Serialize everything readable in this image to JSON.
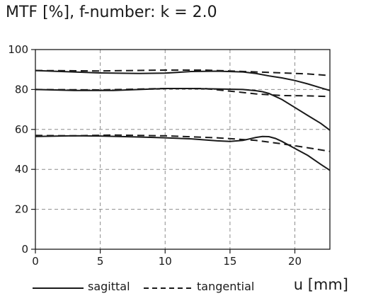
{
  "chart_data": {
    "type": "line",
    "title": "MTF [%], f-number: k = 2.0",
    "xlabel": "u [mm]",
    "ylabel": "",
    "xlim": [
      0,
      22.7
    ],
    "ylim": [
      0,
      100
    ],
    "xticks": [
      0,
      5,
      10,
      15,
      20
    ],
    "yticks": [
      0,
      20,
      40,
      60,
      80,
      100
    ],
    "grid": true,
    "legend": {
      "placement": "bottom",
      "entries": [
        {
          "label": "sagittal",
          "style": "solid"
        },
        {
          "label": "tangential",
          "style": "dashed"
        }
      ]
    },
    "series": [
      {
        "name": "sagittal",
        "style": "solid",
        "x": [
          0,
          2,
          5,
          8,
          10,
          12,
          14,
          16,
          17,
          18,
          19,
          20,
          21,
          22,
          22.7
        ],
        "y": [
          89.5,
          89,
          88.3,
          88,
          88.2,
          89,
          89.2,
          88.8,
          88,
          86.8,
          85.8,
          84.5,
          82.8,
          80.8,
          79.5
        ]
      },
      {
        "name": "tangential",
        "style": "dashed",
        "x": [
          0,
          5,
          10,
          13,
          15,
          17,
          19,
          21,
          22.7
        ],
        "y": [
          89.5,
          89.3,
          89.7,
          89.7,
          89.3,
          88.8,
          88.3,
          87.8,
          87
        ]
      },
      {
        "name": "sagittal",
        "style": "solid",
        "x": [
          0,
          3,
          6,
          10,
          12,
          14,
          16,
          17,
          17.5,
          18,
          19,
          20,
          21,
          22,
          22.7
        ],
        "y": [
          80,
          79.5,
          79.5,
          80.5,
          80.5,
          80.3,
          80,
          79.4,
          78.9,
          78,
          75,
          71,
          67,
          63,
          59.6
        ]
      },
      {
        "name": "tangential",
        "style": "dashed",
        "x": [
          0,
          5,
          10,
          13,
          15,
          17,
          19,
          21,
          22.7
        ],
        "y": [
          80,
          79.8,
          80.5,
          80.5,
          79.2,
          77.8,
          77,
          76.8,
          76.5
        ]
      },
      {
        "name": "sagittal",
        "style": "solid",
        "x": [
          0,
          3,
          5,
          8,
          10,
          12,
          14,
          15,
          16,
          17,
          17.5,
          18,
          18.5,
          19,
          20,
          21,
          22,
          22.7
        ],
        "y": [
          56.5,
          56.8,
          56.7,
          56.2,
          55.8,
          55.3,
          54.3,
          54,
          54.5,
          56,
          56.5,
          56.4,
          55.5,
          54,
          50.5,
          47,
          42.5,
          39.5
        ]
      },
      {
        "name": "tangential",
        "style": "dashed",
        "x": [
          0,
          3,
          6,
          10,
          14,
          17,
          19,
          21,
          22.7
        ],
        "y": [
          57,
          56.8,
          57.2,
          56.8,
          55.8,
          54.5,
          52.8,
          50.8,
          49
        ]
      }
    ]
  }
}
